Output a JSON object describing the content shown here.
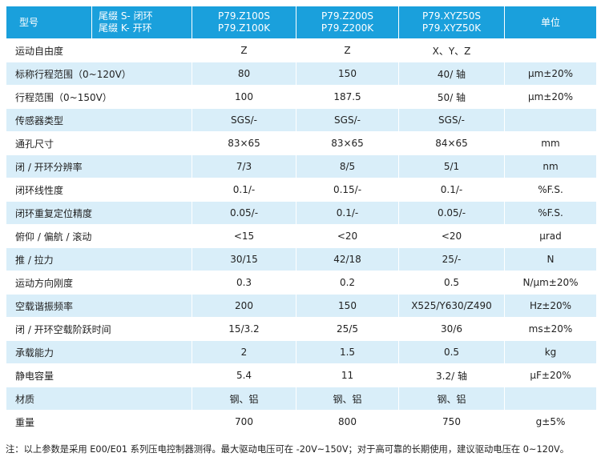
{
  "header": {
    "model_label": "型号",
    "suffix_line1": "尾缀 S- 闭环",
    "suffix_line2": "尾缀 K- 开环",
    "models": [
      {
        "line1": "P79.Z100S",
        "line2": "P79.Z100K"
      },
      {
        "line1": "P79.Z200S",
        "line2": "P79.Z200K"
      },
      {
        "line1": "P79.XYZ50S",
        "line2": "P79.XYZ50K"
      }
    ],
    "unit_label": "单位"
  },
  "rows": [
    {
      "param": "运动自由度",
      "v1": "Z",
      "v2": "Z",
      "v3": "X、Y、Z",
      "unit": ""
    },
    {
      "param": "标称行程范围（0~120V）",
      "v1": "80",
      "v2": "150",
      "v3": "40/ 轴",
      "unit": "μm±20%"
    },
    {
      "param": "行程范围（0~150V）",
      "v1": "100",
      "v2": "187.5",
      "v3": "50/ 轴",
      "unit": "μm±20%"
    },
    {
      "param": "传感器类型",
      "v1": "SGS/-",
      "v2": "SGS/-",
      "v3": "SGS/-",
      "unit": ""
    },
    {
      "param": "通孔尺寸",
      "v1": "83×65",
      "v2": "83×65",
      "v3": "84×65",
      "unit": "mm"
    },
    {
      "param": "闭 / 开环分辨率",
      "v1": "7/3",
      "v2": "8/5",
      "v3": "5/1",
      "unit": "nm"
    },
    {
      "param": "闭环线性度",
      "v1": "0.1/-",
      "v2": "0.15/-",
      "v3": "0.1/-",
      "unit": "%F.S."
    },
    {
      "param": "闭环重复定位精度",
      "v1": "0.05/-",
      "v2": "0.1/-",
      "v3": "0.05/-",
      "unit": "%F.S."
    },
    {
      "param": "俯仰 / 偏航 / 滚动",
      "v1": "<15",
      "v2": "<20",
      "v3": "<20",
      "unit": "μrad"
    },
    {
      "param": "推 / 拉力",
      "v1": "30/15",
      "v2": "42/18",
      "v3": "25/-",
      "unit": "N"
    },
    {
      "param": "运动方向刚度",
      "v1": "0.3",
      "v2": "0.2",
      "v3": "0.5",
      "unit": "N/μm±20%"
    },
    {
      "param": "空载谐振频率",
      "v1": "200",
      "v2": "150",
      "v3": "X525/Y630/Z490",
      "unit": "Hz±20%"
    },
    {
      "param": "闭 / 开环空载阶跃时间",
      "v1": "15/3.2",
      "v2": "25/5",
      "v3": "30/6",
      "unit": "ms±20%"
    },
    {
      "param": "承载能力",
      "v1": "2",
      "v2": "1.5",
      "v3": "0.5",
      "unit": "kg"
    },
    {
      "param": "静电容量",
      "v1": "5.4",
      "v2": "11",
      "v3": "3.2/ 轴",
      "unit": "μF±20%"
    },
    {
      "param": "材质",
      "v1": "钢、铝",
      "v2": "钢、铝",
      "v3": "钢、铝",
      "unit": ""
    },
    {
      "param": "重量",
      "v1": "700",
      "v2": "800",
      "v3": "750",
      "unit": "g±5%"
    }
  ],
  "note": "注：以上参数是采用 E00/E01 系列压电控制器测得。最大驱动电压可在 -20V~150V；对于高可靠的长期使用，建议驱动电压在 0~120V。",
  "colors": {
    "header_bg": "#1aa0dc",
    "stripe_bg": "#d9eef9"
  }
}
